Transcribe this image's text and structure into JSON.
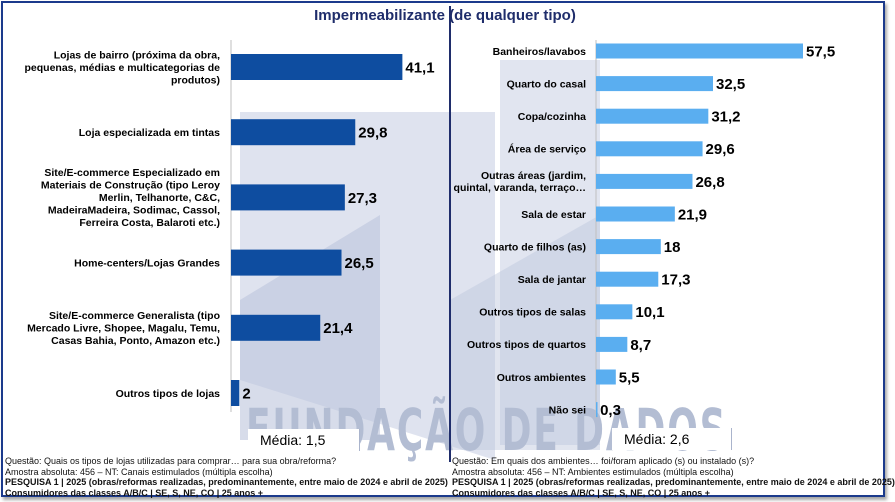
{
  "title": "Impermeabilizante (de qualquer tipo)",
  "watermark": "FUNDAÇÃO DE DADOS",
  "colors": {
    "left_bar": "#0e4da0",
    "right_bar": "#5aaef0",
    "title": "#1f2d6b"
  },
  "chart_data": [
    {
      "type": "bar",
      "orientation": "horizontal",
      "categories": [
        "Lojas de bairro (próxima da obra, pequenas, médias e multicategorias de produtos)",
        "Loja especializada em tintas",
        "Site/E-commerce Especializado em Materiais de Construção (tipo Leroy Merlin, Telhanorte, C&C, MadeiraMadeira, Sodimac, Cassol, Ferreira Costa, Balaroti etc.)",
        "Home-centers/Lojas Grandes",
        "Site/E-commerce Generalista (tipo Mercado Livre, Shopee, Magalu, Temu, Casas Bahia, Ponto, Amazon etc.)",
        "Outros tipos de lojas"
      ],
      "category_lines": [
        [
          "Lojas de bairro (próxima da obra,",
          "pequenas, médias e multicategorias de",
          "produtos)"
        ],
        [
          "Loja especializada em tintas"
        ],
        [
          "Site/E-commerce Especializado em",
          "Materiais de Construção (tipo Leroy",
          "Merlin, Telhanorte, C&C,",
          "MadeiraMadeira, Sodimac, Cassol,",
          "Ferreira Costa, Balaroti etc.)"
        ],
        [
          "Home-centers/Lojas Grandes"
        ],
        [
          "Site/E-commerce Generalista (tipo",
          "Mercado Livre, Shopee, Magalu, Temu,",
          "Casas Bahia, Ponto, Amazon etc.)"
        ],
        [
          "Outros tipos de lojas"
        ]
      ],
      "values": [
        41.1,
        29.8,
        27.3,
        26.5,
        21.4,
        2
      ],
      "value_labels": [
        "41,1",
        "29,8",
        "27,3",
        "26,5",
        "21,4",
        "2"
      ],
      "average_label": "Média: 1,5"
    },
    {
      "type": "bar",
      "orientation": "horizontal",
      "categories": [
        "Banheiros/lavabos",
        "Quarto do casal",
        "Copa/cozinha",
        "Área de serviço",
        "Outras áreas (jardim, quintal, varanda, terraço…",
        "Sala de estar",
        "Quarto de filhos (as)",
        "Sala de jantar",
        "Outros tipos de salas",
        "Outros tipos de quartos",
        "Outros ambientes",
        "Não sei"
      ],
      "category_lines": [
        [
          "Banheiros/lavabos"
        ],
        [
          "Quarto do casal"
        ],
        [
          "Copa/cozinha"
        ],
        [
          "Área de serviço"
        ],
        [
          "Outras áreas (jardim,",
          "quintal, varanda, terraço…"
        ],
        [
          "Sala  de estar"
        ],
        [
          "Quarto de filhos (as)"
        ],
        [
          "Sala de jantar"
        ],
        [
          "Outros tipos de salas"
        ],
        [
          "Outros tipos de quartos"
        ],
        [
          "Outros ambientes"
        ],
        [
          "Não sei"
        ]
      ],
      "values": [
        57.5,
        32.5,
        31.2,
        29.6,
        26.8,
        21.9,
        18,
        17.3,
        10.1,
        8.7,
        5.5,
        0.3
      ],
      "value_labels": [
        "57,5",
        "32,5",
        "31,2",
        "29,6",
        "26,8",
        "21,9",
        "18",
        "17,3",
        "10,1",
        "8,7",
        "5,5",
        "0,3"
      ],
      "average_label": "Média: 2,6"
    }
  ],
  "notes": {
    "left": {
      "question": "Questão: Quais os tipos de lojas utilizadas para comprar… para sua obra/reforma?",
      "sample": "Amostra absoluta: 456 – NT: Canais estimulados (múltipla escolha)",
      "survey": "PESQUISA 1 | 2025 (obras/reformas realizadas, predominantemente, entre maio de 2024 e abril de 2025)",
      "consumers": "Consumidores das classes A/B/C | SE, S, NE, CO | 25 anos +"
    },
    "right": {
      "question": "Questão: Em quais dos ambientes… foi/foram aplicado (s) ou instalado (s)?",
      "sample": "Amostra absoluta: 456 – NT: Ambientes estimulados (múltipla escolha)",
      "survey": "PESQUISA 1 | 2025 (obras/reformas realizadas, predominantemente, entre maio de 2024 e abril de 2025)",
      "consumers": "Consumidores das classes A/B/C | SE, S, NE, CO | 25 anos +"
    }
  }
}
